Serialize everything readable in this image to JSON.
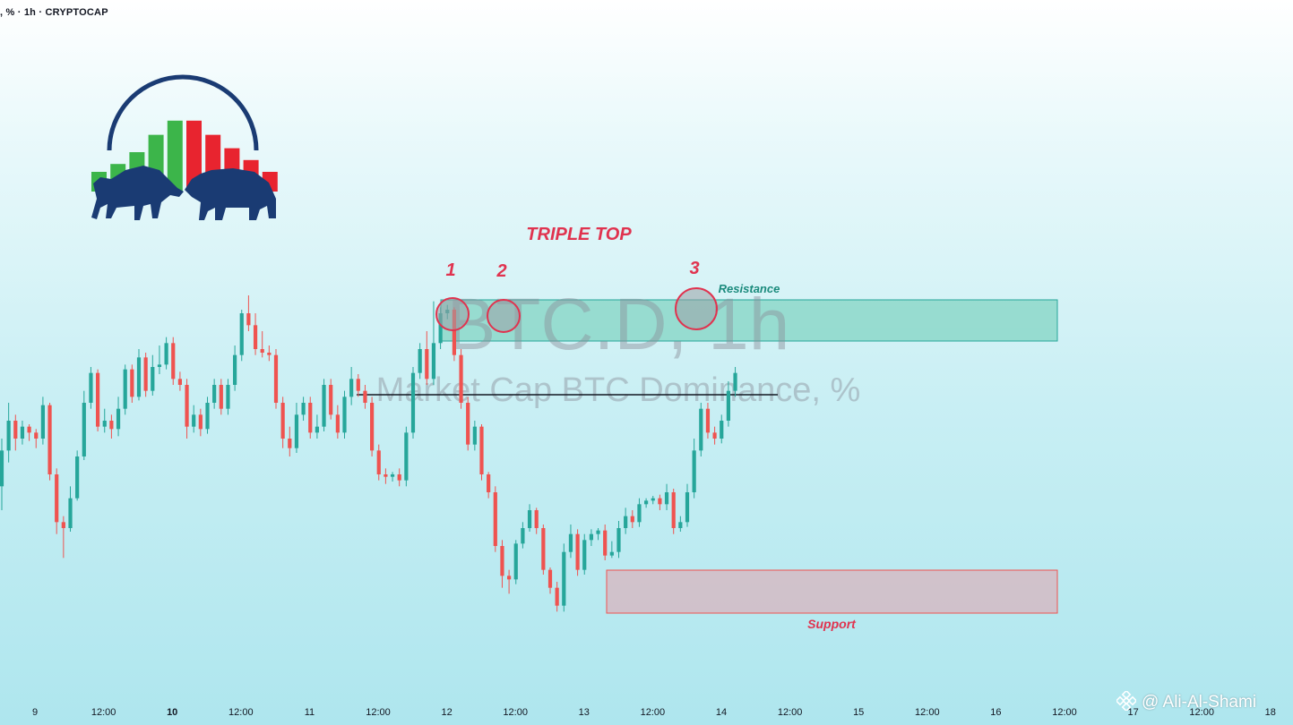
{
  "header": {
    "symbol_line": ", % · 1h · CRYPTOCAP"
  },
  "watermark": {
    "symbol": "BTC.D, 1h",
    "description": "Market Cap BTC Dominance, %"
  },
  "annotations": {
    "title": "TRIPLE TOP",
    "peak_labels": [
      "1",
      "2",
      "3"
    ],
    "resistance_label": "Resistance",
    "support_label": "Support"
  },
  "author": {
    "handle": "@ Ali-Al-Shami"
  },
  "colors": {
    "up": "#26a69a",
    "down": "#ef5350",
    "annotation_red": "#e0334f",
    "resistance_fill": "#7dd3c0",
    "support_fill": "#e79aa6",
    "logo_navy": "#1a3b73"
  },
  "logo": {
    "icon": "bull-and-bear-logo-icon",
    "bar_colors": [
      "#3cb54a",
      "#3cb54a",
      "#3cb54a",
      "#3cb54a",
      "#3cb54a",
      "#e8242f",
      "#e8242f",
      "#e8242f",
      "#e8242f",
      "#e8242f"
    ],
    "bar_levels": [
      0.25,
      0.35,
      0.5,
      0.72,
      0.9,
      0.9,
      0.72,
      0.55,
      0.4,
      0.25
    ]
  },
  "chart_data": {
    "type": "candlestick",
    "title": "",
    "x_ticks": [
      {
        "label": "9",
        "bold": false
      },
      {
        "label": "12:00",
        "bold": false
      },
      {
        "label": "10",
        "bold": true
      },
      {
        "label": "12:00",
        "bold": false
      },
      {
        "label": "11",
        "bold": false
      },
      {
        "label": "12:00",
        "bold": false
      },
      {
        "label": "12",
        "bold": false
      },
      {
        "label": "12:00",
        "bold": false
      },
      {
        "label": "13",
        "bold": false
      },
      {
        "label": "12:00",
        "bold": false
      },
      {
        "label": "14",
        "bold": false
      },
      {
        "label": "12:00",
        "bold": false
      },
      {
        "label": "15",
        "bold": false
      },
      {
        "label": "12:00",
        "bold": false
      },
      {
        "label": "16",
        "bold": false
      },
      {
        "label": "12:00",
        "bold": false
      },
      {
        "label": "17",
        "bold": false
      },
      {
        "label": "12:00",
        "bold": false
      },
      {
        "label": "18",
        "bold": false
      }
    ],
    "y_axis_note": "no price scale visible",
    "candles": [
      [
        430,
        460,
        410,
        470
      ],
      [
        460,
        485,
        450,
        500
      ],
      [
        485,
        470,
        460,
        490
      ],
      [
        470,
        480,
        465,
        485
      ],
      [
        480,
        475,
        468,
        482
      ],
      [
        475,
        470,
        462,
        478
      ],
      [
        470,
        498,
        465,
        505
      ],
      [
        498,
        440,
        435,
        500
      ],
      [
        440,
        400,
        390,
        445
      ],
      [
        400,
        395,
        370,
        405
      ],
      [
        395,
        420,
        392,
        430
      ],
      [
        420,
        455,
        418,
        460
      ],
      [
        455,
        500,
        452,
        510
      ],
      [
        500,
        525,
        495,
        530
      ],
      [
        525,
        480,
        476,
        528
      ],
      [
        480,
        485,
        475,
        495
      ],
      [
        485,
        478,
        470,
        490
      ],
      [
        478,
        495,
        472,
        505
      ],
      [
        495,
        528,
        490,
        532
      ],
      [
        528,
        505,
        500,
        532
      ],
      [
        505,
        538,
        502,
        545
      ],
      [
        538,
        510,
        505,
        542
      ],
      [
        510,
        530,
        506,
        540
      ],
      [
        530,
        532,
        524,
        548
      ],
      [
        532,
        550,
        528,
        555
      ],
      [
        550,
        520,
        515,
        555
      ],
      [
        520,
        515,
        510,
        526
      ],
      [
        515,
        480,
        470,
        520
      ],
      [
        480,
        490,
        475,
        498
      ],
      [
        490,
        478,
        472,
        495
      ],
      [
        478,
        500,
        474,
        505
      ],
      [
        500,
        515,
        495,
        520
      ],
      [
        515,
        495,
        490,
        520
      ],
      [
        495,
        515,
        490,
        520
      ],
      [
        515,
        540,
        510,
        548
      ],
      [
        540,
        575,
        535,
        578
      ],
      [
        575,
        565,
        560,
        590
      ],
      [
        565,
        545,
        540,
        575
      ],
      [
        545,
        542,
        538,
        560
      ],
      [
        542,
        540,
        535,
        548
      ],
      [
        540,
        500,
        495,
        545
      ],
      [
        500,
        470,
        462,
        505
      ],
      [
        470,
        462,
        455,
        480
      ],
      [
        462,
        490,
        458,
        500
      ],
      [
        490,
        500,
        485,
        505
      ],
      [
        500,
        475,
        470,
        505
      ],
      [
        475,
        480,
        470,
        490
      ],
      [
        480,
        515,
        476,
        520
      ],
      [
        515,
        490,
        486,
        520
      ],
      [
        490,
        475,
        470,
        498
      ],
      [
        475,
        505,
        470,
        510
      ],
      [
        505,
        520,
        498,
        530
      ],
      [
        520,
        510,
        505,
        524
      ],
      [
        510,
        500,
        495,
        515
      ],
      [
        500,
        460,
        455,
        505
      ],
      [
        460,
        440,
        435,
        465
      ],
      [
        440,
        438,
        432,
        445
      ],
      [
        438,
        440,
        434,
        442
      ],
      [
        440,
        435,
        430,
        445
      ],
      [
        435,
        475,
        430,
        480
      ],
      [
        475,
        525,
        470,
        530
      ],
      [
        525,
        545,
        520,
        550
      ],
      [
        545,
        520,
        515,
        560
      ],
      [
        520,
        550,
        515,
        585
      ],
      [
        550,
        575,
        545,
        580
      ],
      [
        575,
        578,
        570,
        582
      ],
      [
        578,
        540,
        535,
        580
      ],
      [
        540,
        500,
        495,
        545
      ],
      [
        500,
        465,
        460,
        505
      ],
      [
        465,
        480,
        460,
        485
      ],
      [
        480,
        440,
        435,
        482
      ],
      [
        440,
        425,
        420,
        442
      ],
      [
        425,
        380,
        375,
        430
      ],
      [
        380,
        355,
        345,
        385
      ],
      [
        355,
        352,
        340,
        360
      ],
      [
        352,
        382,
        348,
        385
      ],
      [
        382,
        395,
        378,
        400
      ],
      [
        395,
        410,
        392,
        415
      ],
      [
        410,
        395,
        390,
        412
      ],
      [
        395,
        360,
        356,
        398
      ],
      [
        360,
        345,
        340,
        362
      ],
      [
        345,
        330,
        325,
        350
      ],
      [
        330,
        375,
        325,
        382
      ],
      [
        375,
        390,
        370,
        398
      ],
      [
        390,
        360,
        355,
        394
      ],
      [
        360,
        385,
        356,
        390
      ],
      [
        385,
        390,
        380,
        394
      ],
      [
        390,
        393,
        385,
        395
      ],
      [
        393,
        372,
        368,
        398
      ],
      [
        372,
        375,
        370,
        384
      ],
      [
        375,
        395,
        370,
        401
      ],
      [
        395,
        405,
        390,
        412
      ],
      [
        405,
        400,
        395,
        410
      ],
      [
        400,
        415,
        396,
        420
      ],
      [
        415,
        418,
        412,
        420
      ],
      [
        418,
        420,
        415,
        422
      ],
      [
        420,
        415,
        410,
        423
      ],
      [
        415,
        425,
        410,
        432
      ],
      [
        425,
        395,
        390,
        428
      ],
      [
        395,
        400,
        392,
        405
      ],
      [
        400,
        425,
        396,
        432
      ],
      [
        425,
        460,
        420,
        470
      ],
      [
        460,
        495,
        455,
        500
      ],
      [
        495,
        475,
        470,
        500
      ],
      [
        475,
        470,
        465,
        480
      ],
      [
        470,
        485,
        466,
        490
      ],
      [
        485,
        510,
        480,
        518
      ],
      [
        510,
        525,
        505,
        530
      ]
    ],
    "resistance_zone": {
      "label": "Resistance"
    },
    "support_zone": {
      "label": "Support"
    },
    "neckline": "horizontal line near the middle of the range",
    "pattern": "TRIPLE TOP"
  }
}
